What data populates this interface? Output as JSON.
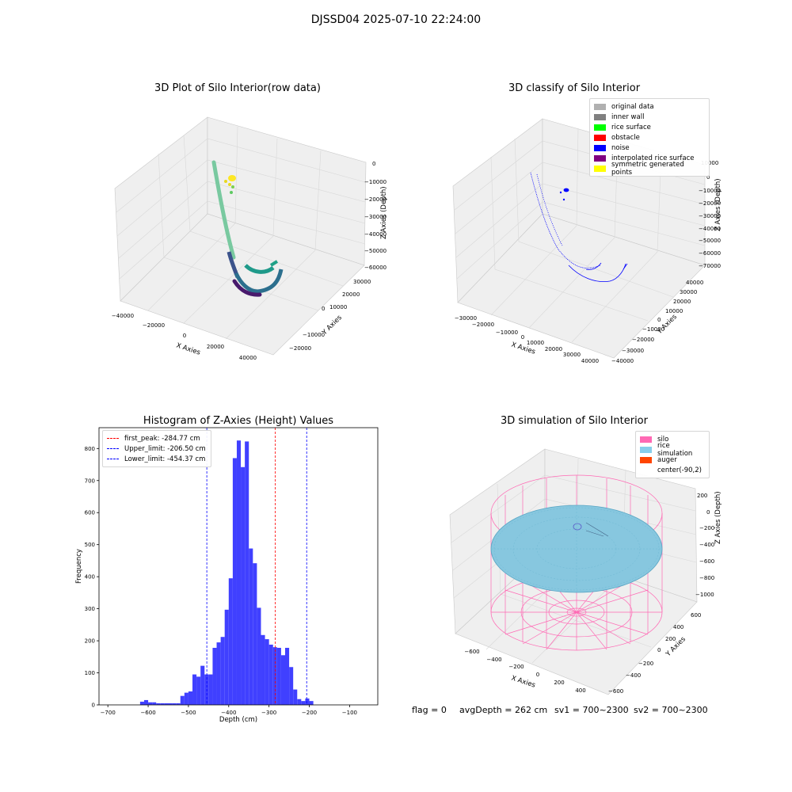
{
  "page": {
    "suptitle": "DJSSD04 2025-07-10 22:24:00",
    "footer": {
      "flag": "flag = 0",
      "avg_depth": "avgDepth = 262 cm",
      "sv1": "sv1 = 700~2300",
      "sv2": "sv2 = 700~2300"
    }
  },
  "chart_data": [
    {
      "id": "raw3d",
      "type": "scatter",
      "projection": "3d",
      "title": "3D Plot of Silo Interior(row data)",
      "xlabel": "X Axies",
      "ylabel": "Y Axies",
      "zlabel": "Z Axies (Depth)",
      "x_ticks": [
        "−40000",
        "−20000",
        "0",
        "20000",
        "40000"
      ],
      "y_ticks": [
        "−20000",
        "−10000",
        "0",
        "10000",
        "20000",
        "30000"
      ],
      "z_ticks": [
        "0",
        "−10000",
        "−20000",
        "−30000",
        "−40000",
        "−50000",
        "−60000"
      ],
      "colormap": [
        "#440154",
        "#3b528b",
        "#21918c",
        "#5ec962",
        "#fde725"
      ]
    },
    {
      "id": "classify3d",
      "type": "scatter",
      "projection": "3d",
      "title": "3D classify of Silo Interior",
      "xlabel": "X Axies",
      "ylabel": "Y Axies",
      "zlabel": "Z Axies (Depth)",
      "x_ticks": [
        "−30000",
        "−20000",
        "−10000",
        "0",
        "10000",
        "20000",
        "30000",
        "40000"
      ],
      "y_ticks": [
        "−40000",
        "−30000",
        "−20000",
        "−10000",
        "0",
        "10000",
        "20000",
        "30000",
        "40000"
      ],
      "z_ticks": [
        "10000",
        "0",
        "−10000",
        "−20000",
        "−30000",
        "−40000",
        "−50000",
        "−60000",
        "−70000"
      ],
      "legend": [
        {
          "label": "original data",
          "color": "#b0b0b0"
        },
        {
          "label": "inner wall",
          "color": "#808080"
        },
        {
          "label": "rice surface",
          "color": "#00ff00"
        },
        {
          "label": "obstacle",
          "color": "#ff0000"
        },
        {
          "label": "noise",
          "color": "#0000ff"
        },
        {
          "label": "interpolated rice surface",
          "color": "#800080"
        },
        {
          "label": "symmetric generated points",
          "color": "#ffff00"
        }
      ]
    },
    {
      "id": "hist",
      "type": "bar",
      "title": "Histogram of Z-Axies (Height) Values",
      "xlabel": "Depth (cm)",
      "ylabel": "Frequency",
      "xlim": [
        -722,
        -30
      ],
      "ylim": [
        0,
        865
      ],
      "x_ticks": [
        -700,
        -600,
        -500,
        -400,
        -300,
        -200,
        -100
      ],
      "x_tick_labels": [
        "−700",
        "−600",
        "−500",
        "−400",
        "−300",
        "−200",
        "−100"
      ],
      "y_ticks": [
        0,
        100,
        200,
        300,
        400,
        500,
        600,
        700,
        800
      ],
      "bar_color": "#4040ff",
      "bins": {
        "start": -620,
        "width": 10,
        "counts": [
          10,
          15,
          8,
          8,
          5,
          5,
          5,
          5,
          5,
          5,
          28,
          38,
          42,
          95,
          88,
          122,
          95,
          95,
          178,
          195,
          212,
          297,
          395,
          770,
          825,
          742,
          822,
          488,
          442,
          303,
          218,
          205,
          188,
          180,
          178,
          155,
          178,
          118,
          48,
          18,
          12,
          20,
          12
        ]
      },
      "lines": [
        {
          "label": "first_peak: -284.77 cm",
          "value": -284.77,
          "color": "#ff0000"
        },
        {
          "label": "Upper_limit: -206.50 cm",
          "value": -206.5,
          "color": "#0000ff"
        },
        {
          "label": "Lower_limit: -454.37 cm",
          "value": -454.37,
          "color": "#0000ff"
        }
      ]
    },
    {
      "id": "sim3d",
      "type": "surface",
      "projection": "3d",
      "title": "3D simulation of Silo Interior",
      "xlabel": "X Axies",
      "ylabel": "Y Axies",
      "zlabel": "Z Axies (Depth)",
      "x_ticks": [
        "−600",
        "−400",
        "−200",
        "0",
        "200",
        "400"
      ],
      "y_ticks": [
        "−600",
        "−400",
        "−200",
        "0",
        "200",
        "400",
        "600"
      ],
      "z_ticks": [
        "200",
        "0",
        "−200",
        "−400",
        "−600",
        "−800",
        "−1000"
      ],
      "legend": [
        {
          "label": "silo",
          "color": "#ff69b4"
        },
        {
          "label": "rice simulation",
          "color": "#87ceeb"
        },
        {
          "label": "auger",
          "color": "#ff4500"
        },
        {
          "label": "center(-90,2)",
          "color": ""
        }
      ]
    }
  ]
}
